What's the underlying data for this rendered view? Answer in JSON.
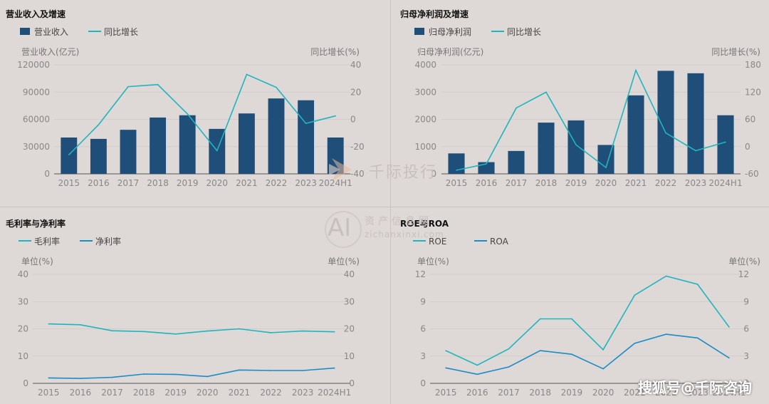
{
  "colors": {
    "bar": "#1f4e79",
    "cyan": "#1fb5bf",
    "blue": "#1a8cc8",
    "grid": "#cfc9c7"
  },
  "watermark": {
    "brand": "千际投行",
    "ai": "AI",
    "cn": "资产信息网",
    "url": "zichanxinxi.com"
  },
  "footer": {
    "source": "搜狐号@千际咨询"
  },
  "chart_data": [
    {
      "type": "bar+line",
      "title": "营业收入及增速",
      "categories": [
        "2015",
        "2016",
        "2017",
        "2018",
        "2019",
        "2020",
        "2021",
        "2022",
        "2023",
        "2024H1"
      ],
      "series": [
        {
          "name": "营业收入",
          "type": "bar",
          "axis": "left",
          "values": [
            40000,
            38500,
            48500,
            62000,
            64500,
            49500,
            66500,
            83000,
            81000,
            40000
          ]
        },
        {
          "name": "同比增长",
          "type": "line",
          "axis": "right",
          "values": [
            -26,
            -4,
            24,
            25.5,
            4,
            -23,
            33,
            23.5,
            -3,
            2.5
          ]
        }
      ],
      "ylabel": "营业收入(亿元)",
      "y2label": "同比增长(%)",
      "ylim": [
        0,
        120000
      ],
      "yticks": [
        0,
        30000,
        60000,
        90000,
        120000
      ],
      "y2lim": [
        -40,
        40
      ],
      "y2ticks": [
        -40,
        -20,
        0,
        20,
        40
      ],
      "legend": "top-left"
    },
    {
      "type": "bar+line",
      "title": "归母净利润及增速",
      "categories": [
        "2015",
        "2016",
        "2017",
        "2018",
        "2019",
        "2020",
        "2021",
        "2022",
        "2023",
        "2024H1"
      ],
      "series": [
        {
          "name": "归母净利润",
          "type": "bar",
          "axis": "left",
          "values": [
            750,
            430,
            840,
            1880,
            1960,
            1060,
            2880,
            3780,
            3690,
            2150
          ]
        },
        {
          "name": "同比增长",
          "type": "line",
          "axis": "right",
          "values": [
            -52,
            -38,
            85,
            120,
            4,
            -46,
            168,
            30,
            -9,
            10
          ]
        }
      ],
      "ylabel": "归母净利润(亿元)",
      "y2label": "同比增长(%)",
      "ylim": [
        0,
        4000
      ],
      "yticks": [
        0,
        1000,
        2000,
        3000,
        4000
      ],
      "y2lim": [
        -60,
        180
      ],
      "y2ticks": [
        -60,
        0,
        60,
        120,
        180
      ],
      "legend": "top-left"
    },
    {
      "type": "line",
      "title": "毛利率与净利率",
      "categories": [
        "2015",
        "2016",
        "2017",
        "2018",
        "2019",
        "2020",
        "2021",
        "2022",
        "2023",
        "2024H1"
      ],
      "series": [
        {
          "name": "毛利率",
          "color": "cyan",
          "values": [
            21.8,
            21.5,
            19.3,
            19.0,
            18.1,
            19.2,
            20.0,
            18.6,
            19.2,
            18.9
          ]
        },
        {
          "name": "净利率",
          "color": "blue",
          "values": [
            2.0,
            1.8,
            2.2,
            3.4,
            3.3,
            2.5,
            4.9,
            4.7,
            4.7,
            5.6
          ]
        }
      ],
      "ylabel": "单位(%)",
      "y2label": "单位(%)",
      "ylim": [
        0,
        40
      ],
      "yticks": [
        0,
        10,
        20,
        30,
        40
      ],
      "legend": "top-left"
    },
    {
      "type": "line",
      "title": "ROE与ROA",
      "categories": [
        "2015",
        "2016",
        "2017",
        "2018",
        "2019",
        "2020",
        "2021",
        "2022",
        "2023",
        "2024H1"
      ],
      "series": [
        {
          "name": "ROE",
          "color": "cyan",
          "values": [
            3.6,
            2.0,
            3.8,
            7.1,
            7.1,
            3.7,
            9.7,
            11.8,
            10.9,
            6.2
          ]
        },
        {
          "name": "ROA",
          "color": "blue",
          "values": [
            1.7,
            1.0,
            1.8,
            3.6,
            3.2,
            1.6,
            4.4,
            5.4,
            5.0,
            2.8
          ]
        }
      ],
      "ylabel": "单位(%)",
      "y2label": "单位(%)",
      "ylim": [
        0,
        12
      ],
      "yticks": [
        0,
        3,
        6,
        9,
        12
      ],
      "legend": "top-left"
    }
  ]
}
